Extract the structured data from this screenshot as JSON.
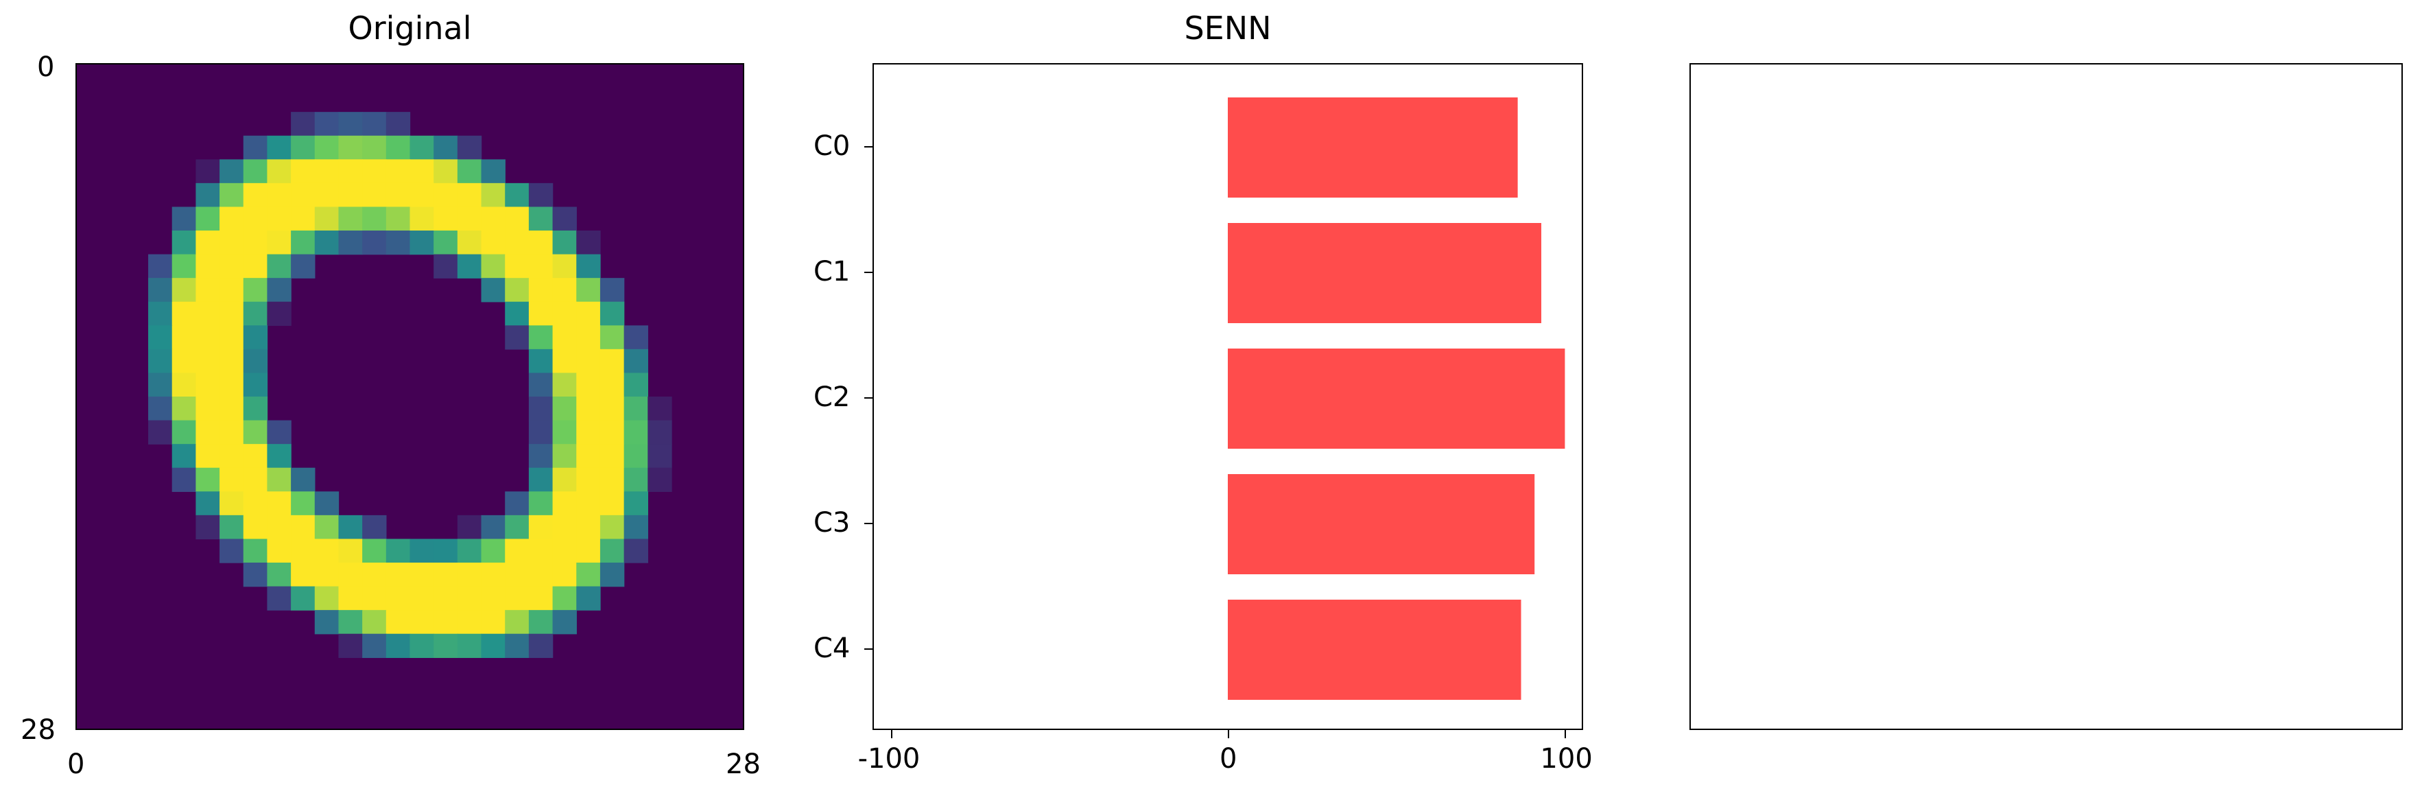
{
  "figure": {
    "panels": [
      {
        "title": "Original"
      },
      {
        "title": "SENN"
      },
      {
        "title": ""
      }
    ]
  },
  "image_panel": {
    "colormap": "viridis",
    "x_ticks": [
      "0",
      "28"
    ],
    "y_ticks": [
      "0",
      "28"
    ],
    "grid_size": 28,
    "glyph": "0"
  },
  "chart_data": [
    {
      "type": "heatmap",
      "title": "Original",
      "xlim": [
        0,
        28
      ],
      "ylim": [
        28,
        0
      ],
      "x_ticks": [
        "0",
        "28"
      ],
      "y_ticks": [
        "0",
        "28"
      ],
      "colormap": "viridis",
      "content": "28x28 grayscale handwritten digit 0"
    },
    {
      "type": "bar",
      "orientation": "horizontal",
      "title": "SENN",
      "categories": [
        "C0",
        "C1",
        "C2",
        "C3",
        "C4"
      ],
      "values": [
        86,
        93,
        100,
        91,
        87
      ],
      "xlim": [
        -105,
        105
      ],
      "x_ticks": [
        "-100",
        "0",
        "100"
      ],
      "bar_color": "#ff4c4c",
      "xlabel": "",
      "ylabel": ""
    },
    {
      "type": "bar",
      "title": "",
      "empty": true
    }
  ]
}
